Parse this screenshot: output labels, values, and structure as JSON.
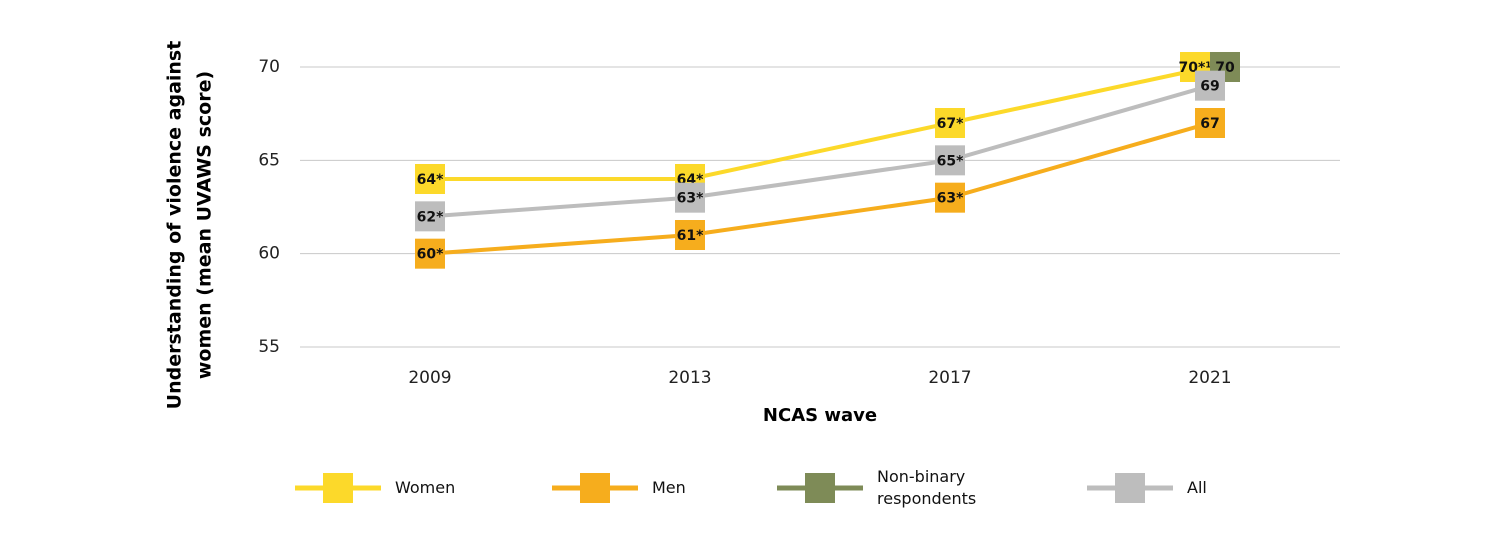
{
  "chart_data": {
    "type": "line",
    "ylabel": [
      "Understanding of violence against",
      "women (mean UVAWS score)"
    ],
    "xlabel": "NCAS wave",
    "categories": [
      "2009",
      "2013",
      "2017",
      "2021"
    ],
    "series": [
      {
        "name": "Women",
        "color": "#fcd92a",
        "values": [
          64,
          64,
          67,
          70
        ],
        "value_labels": [
          "64*",
          "64*",
          "67*",
          "70*¹"
        ]
      },
      {
        "name": "Men",
        "color": "#f6ad1d",
        "values": [
          60,
          61,
          63,
          67
        ],
        "value_labels": [
          "60*",
          "61*",
          "63*",
          "67"
        ]
      },
      {
        "name": "Non-binary respondents",
        "color": "#7e8b57",
        "values": [
          null,
          null,
          null,
          70
        ],
        "value_labels": [
          null,
          null,
          null,
          "70"
        ]
      },
      {
        "name": "All",
        "color": "#bdbdbd",
        "values": [
          62,
          63,
          65,
          69
        ],
        "value_labels": [
          "62*",
          "63*",
          "65*",
          "69"
        ]
      }
    ],
    "ylim": [
      55,
      70
    ],
    "yticks": [
      55,
      60,
      65,
      70
    ],
    "grid": true
  }
}
